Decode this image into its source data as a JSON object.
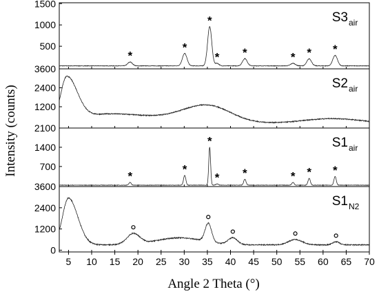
{
  "chart_data": {
    "type": "line",
    "xlabel": "Angle 2 Theta (°)",
    "ylabel": "Intensity (counts)",
    "xlim": [
      3,
      70
    ],
    "x_ticks": [
      5,
      10,
      15,
      20,
      25,
      30,
      35,
      40,
      45,
      50,
      55,
      60,
      65,
      70
    ],
    "line_color": "#222222",
    "panels": [
      {
        "name": "S3",
        "subscript": "air",
        "ylim": [
          -30,
          1520
        ],
        "y_ticks": [
          500,
          1000,
          1500
        ],
        "y_tick_labels": [
          "500",
          "1000",
          "1500"
        ],
        "baseline": 40,
        "noise": 6,
        "peaks": [
          {
            "x": 18.3,
            "h": 90,
            "w": 0.5,
            "marker": "*"
          },
          {
            "x": 30.1,
            "h": 290,
            "w": 0.5,
            "marker": "*"
          },
          {
            "x": 35.5,
            "h": 920,
            "w": 0.45,
            "marker": "*"
          },
          {
            "x": 37.1,
            "h": 60,
            "w": 0.4,
            "marker": "*"
          },
          {
            "x": 43.1,
            "h": 170,
            "w": 0.5,
            "marker": "*"
          },
          {
            "x": 53.5,
            "h": 60,
            "w": 0.5,
            "marker": "*"
          },
          {
            "x": 57.0,
            "h": 165,
            "w": 0.5,
            "marker": "*"
          },
          {
            "x": 62.6,
            "h": 245,
            "w": 0.5,
            "marker": "*"
          }
        ],
        "humps": []
      },
      {
        "name": "S2",
        "subscript": "air",
        "ylim": [
          -150,
          3600
        ],
        "y_ticks": [
          1200,
          2400,
          3600
        ],
        "y_tick_labels": [
          "1200",
          "2400",
          "3600"
        ],
        "baseline": 150,
        "noise": 30,
        "peaks": [],
        "humps": [
          {
            "x": 4.6,
            "h": 2800,
            "wl": 1.3,
            "wr": 2.3
          },
          {
            "x": 35.0,
            "h": 1100,
            "wl": 5.5,
            "wr": 5.0
          },
          {
            "x": 62.0,
            "h": 300,
            "wl": 6,
            "wr": 6
          },
          {
            "x": 14.0,
            "h": 600,
            "wl": 6,
            "wr": 10
          }
        ]
      },
      {
        "name": "S1",
        "subscript": "air",
        "ylim": [
          -30,
          2100
        ],
        "y_ticks": [
          700,
          1400,
          2100
        ],
        "y_tick_labels": [
          "700",
          "1400",
          "2100"
        ],
        "baseline": 20,
        "noise": 7,
        "peaks": [
          {
            "x": 18.3,
            "h": 100,
            "w": 0.25,
            "marker": "*"
          },
          {
            "x": 30.1,
            "h": 360,
            "w": 0.25,
            "marker": "*"
          },
          {
            "x": 35.5,
            "h": 1380,
            "w": 0.2,
            "marker": "*"
          },
          {
            "x": 37.1,
            "h": 50,
            "w": 0.25,
            "marker": "*"
          },
          {
            "x": 43.1,
            "h": 220,
            "w": 0.25,
            "marker": "*"
          },
          {
            "x": 53.5,
            "h": 100,
            "w": 0.25,
            "marker": "*"
          },
          {
            "x": 57.0,
            "h": 250,
            "w": 0.25,
            "marker": "*"
          },
          {
            "x": 62.6,
            "h": 320,
            "w": 0.25,
            "marker": "*"
          }
        ],
        "humps": []
      },
      {
        "name": "S1",
        "subscript": "N2",
        "ylim": [
          -100,
          3600
        ],
        "y_ticks": [
          0,
          1200,
          2400,
          3600
        ],
        "y_tick_labels": [
          "0",
          "1200",
          "2400",
          "3600"
        ],
        "baseline": 300,
        "noise": 30,
        "peaks": [
          {
            "x": 19.0,
            "h": 600,
            "w": 1.4,
            "marker": "o"
          },
          {
            "x": 35.2,
            "h": 1050,
            "w": 0.7,
            "marker": "o"
          },
          {
            "x": 40.5,
            "h": 380,
            "w": 1.0,
            "marker": "o"
          },
          {
            "x": 54.0,
            "h": 300,
            "w": 1.5,
            "marker": "o"
          },
          {
            "x": 62.8,
            "h": 180,
            "w": 0.7,
            "marker": "o"
          }
        ],
        "humps": [
          {
            "x": 5.0,
            "h": 2650,
            "wl": 1.3,
            "wr": 2.0
          },
          {
            "x": 29.0,
            "h": 400,
            "wl": 5,
            "wr": 5
          }
        ]
      }
    ]
  }
}
